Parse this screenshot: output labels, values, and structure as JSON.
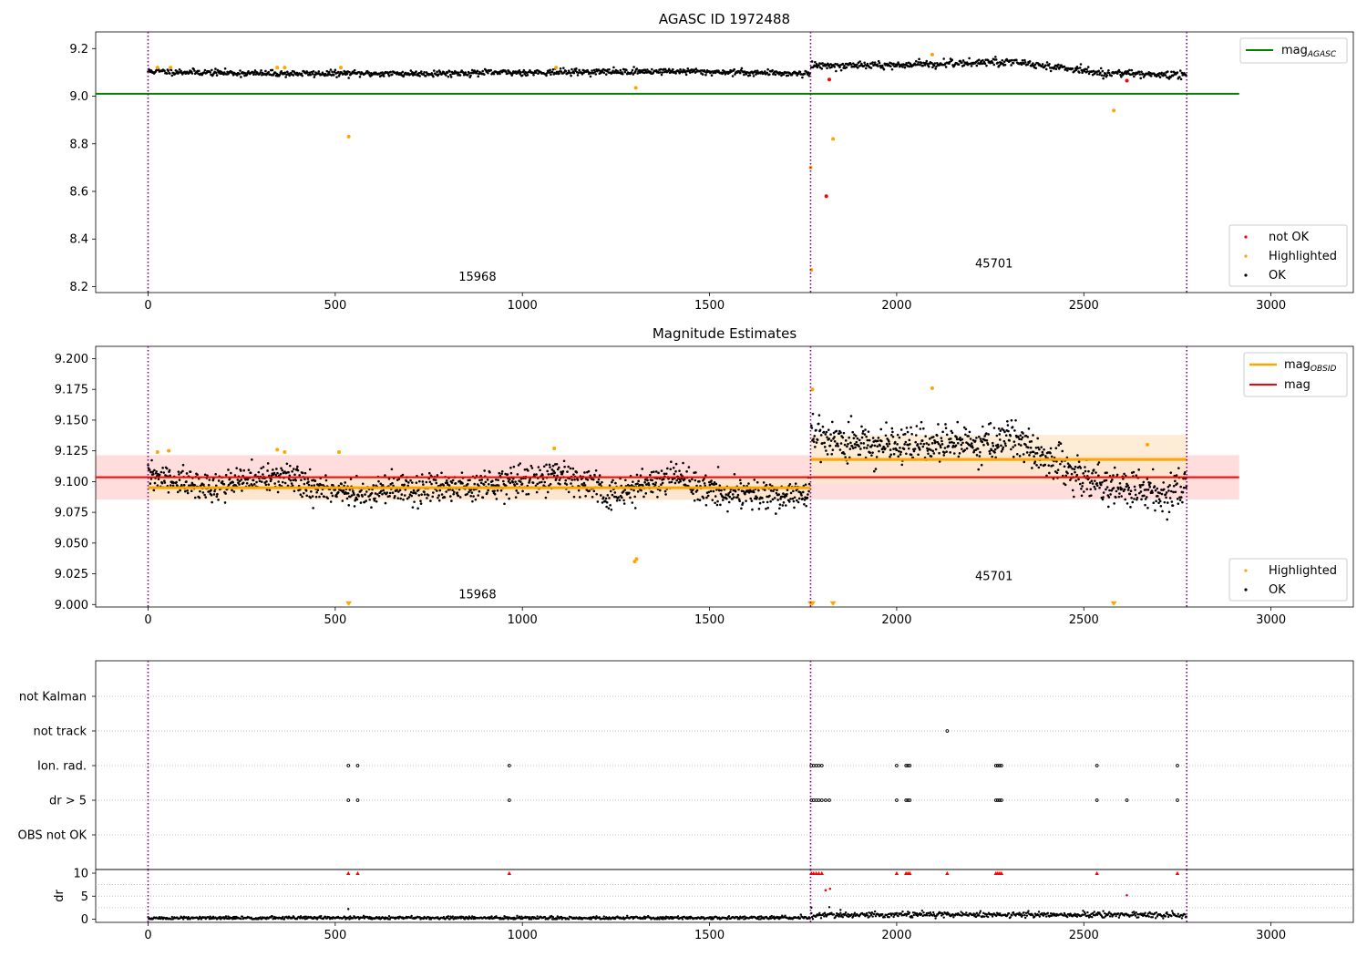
{
  "figure": {
    "colors": {
      "ok": "#000000",
      "highlighted": "#ffa500",
      "not_ok": "#ff0000",
      "agasc_line": "#008000",
      "mag_line": "#ff0000",
      "mag_obsid_line": "#ffa500",
      "obsid_boundary": "#800080",
      "mag_band": "#ffdddd",
      "mag_obsid_band": "#fde7cc",
      "flag_grid": "#b0b0b0"
    }
  },
  "chart_data": [
    {
      "type": "scatter",
      "title": "AGASC ID 1972488",
      "xlabel": "",
      "ylabel": "",
      "xlim": [
        -140,
        3220
      ],
      "ylim": [
        8.175,
        9.27
      ],
      "xticks": [
        0,
        500,
        1000,
        1500,
        2000,
        2500,
        3000
      ],
      "xtick_labels": [
        "0",
        "500",
        "1000",
        "1500",
        "2000",
        "2500",
        "3000"
      ],
      "yticks": [
        8.2,
        8.4,
        8.6,
        8.8,
        9.0,
        9.2
      ],
      "ytick_labels": [
        "8.2",
        "8.4",
        "8.6",
        "8.8",
        "9.0",
        "9.2"
      ],
      "obsid_boundaries": [
        0,
        1770,
        2775
      ],
      "obsid_labels": [
        {
          "text": "15968",
          "x": 880,
          "y": 8.225
        },
        {
          "text": "45701",
          "x": 2260,
          "y": 8.28
        }
      ],
      "reference_lines": [
        {
          "name": "mag",
          "sub": "AGASC",
          "y": 9.01,
          "x": [
            -140,
            2915
          ]
        }
      ],
      "legend_lines": [
        {
          "label": "mag",
          "sub": "AGASC",
          "color": "#008000"
        }
      ],
      "legend_markers": [
        {
          "label": "not OK",
          "color": "#ff0000"
        },
        {
          "label": "Highlighted",
          "color": "#ffa500"
        },
        {
          "label": "OK",
          "color": "#000000"
        }
      ],
      "series": [
        {
          "name": "OK",
          "style": "dense_band",
          "segments": [
            {
              "x_start": 0,
              "x_end": 1768,
              "center": [
                [
                  0,
                  9.105
                ],
                [
                  300,
                  9.095
                ],
                [
                  700,
                  9.095
                ],
                [
                  1000,
                  9.1
                ],
                [
                  1400,
                  9.105
                ],
                [
                  1768,
                  9.095
                ]
              ],
              "spread": 0.013
            },
            {
              "x_start": 1772,
              "x_end": 2775,
              "center": [
                [
                  1772,
                  9.13
                ],
                [
                  2000,
                  9.13
                ],
                [
                  2300,
                  9.145
                ],
                [
                  2450,
                  9.12
                ],
                [
                  2550,
                  9.095
                ],
                [
                  2775,
                  9.09
                ]
              ],
              "spread": 0.016
            }
          ]
        },
        {
          "name": "Highlighted",
          "points": [
            [
              25,
              9.12
            ],
            [
              60,
              9.12
            ],
            [
              345,
              9.12
            ],
            [
              365,
              9.12
            ],
            [
              515,
              9.12
            ],
            [
              536,
              8.83
            ],
            [
              1090,
              9.12
            ],
            [
              1303,
              9.035
            ],
            [
              1770,
              8.7
            ],
            [
              1772,
              8.27
            ],
            [
              1830,
              8.82
            ],
            [
              2095,
              9.175
            ],
            [
              2580,
              8.94
            ]
          ]
        },
        {
          "name": "not OK",
          "points": [
            [
              1812,
              8.58
            ],
            [
              1820,
              9.07
            ],
            [
              2615,
              9.065
            ]
          ]
        }
      ]
    },
    {
      "type": "scatter",
      "title": "Magnitude Estimates",
      "xlabel": "",
      "ylabel": "",
      "xlim": [
        -140,
        3220
      ],
      "ylim": [
        8.998,
        9.21
      ],
      "xticks": [
        0,
        500,
        1000,
        1500,
        2000,
        2500,
        3000
      ],
      "xtick_labels": [
        "0",
        "500",
        "1000",
        "1500",
        "2000",
        "2500",
        "3000"
      ],
      "yticks": [
        9.0,
        9.025,
        9.05,
        9.075,
        9.1,
        9.125,
        9.15,
        9.175,
        9.2
      ],
      "ytick_labels": [
        "9.000",
        "9.025",
        "9.050",
        "9.075",
        "9.100",
        "9.125",
        "9.150",
        "9.175",
        "9.200"
      ],
      "obsid_boundaries": [
        0,
        1770,
        2775
      ],
      "obsid_labels": [
        {
          "text": "15968",
          "x": 880,
          "y": 9.005
        },
        {
          "text": "45701",
          "x": 2260,
          "y": 9.02
        }
      ],
      "reference_lines": [
        {
          "name": "mag",
          "y": 9.1035,
          "x": [
            -140,
            2915
          ],
          "band": [
            9.0855,
            9.1215
          ]
        },
        {
          "name": "mag",
          "sub": "OBSID",
          "segments": [
            {
              "x": [
                0,
                1770
              ],
              "y": 9.095,
              "band": [
                9.085,
                9.105
              ]
            },
            {
              "x": [
                1770,
                2775
              ],
              "y": 9.118,
              "band": [
                9.098,
                9.138
              ]
            }
          ]
        }
      ],
      "legend_lines": [
        {
          "label": "mag",
          "sub": "OBSID",
          "color": "#ffa500"
        },
        {
          "label": "mag",
          "color": "#ff0000"
        }
      ],
      "legend_markers": [
        {
          "label": "Highlighted",
          "color": "#ffa500"
        },
        {
          "label": "OK",
          "color": "#000000"
        }
      ],
      "series": [
        {
          "name": "OK",
          "style": "scatter_band",
          "segments": [
            {
              "x_start": 0,
              "x_end": 1768,
              "center": [
                [
                  0,
                  9.105
                ],
                [
                  150,
                  9.095
                ],
                [
                  350,
                  9.105
                ],
                [
                  500,
                  9.09
                ],
                [
                  800,
                  9.095
                ],
                [
                  1100,
                  9.105
                ],
                [
                  1250,
                  9.09
                ],
                [
                  1400,
                  9.105
                ],
                [
                  1550,
                  9.09
                ],
                [
                  1768,
                  9.09
                ]
              ],
              "spread": 0.012
            },
            {
              "x_start": 1772,
              "x_end": 2775,
              "center": [
                [
                  1772,
                  9.14
                ],
                [
                  1900,
                  9.13
                ],
                [
                  2100,
                  9.128
                ],
                [
                  2300,
                  9.135
                ],
                [
                  2420,
                  9.115
                ],
                [
                  2550,
                  9.095
                ],
                [
                  2700,
                  9.09
                ],
                [
                  2775,
                  9.095
                ]
              ],
              "spread": 0.016
            }
          ]
        },
        {
          "name": "Highlighted",
          "points": [
            [
              25,
              9.124
            ],
            [
              55,
              9.125
            ],
            [
              345,
              9.126
            ],
            [
              365,
              9.124
            ],
            [
              510,
              9.124
            ],
            [
              1085,
              9.127
            ],
            [
              1300,
              9.035
            ],
            [
              1305,
              9.037
            ],
            [
              1775,
              9.175
            ],
            [
              2095,
              9.176
            ],
            [
              2670,
              9.13
            ]
          ]
        },
        {
          "name": "Highlighted (below range)",
          "points": [
            [
              536,
              9.0
            ],
            [
              1770,
              9.0
            ],
            [
              1775,
              9.0
            ],
            [
              1830,
              9.0
            ],
            [
              2580,
              9.0
            ]
          ]
        }
      ]
    },
    {
      "type": "scatter",
      "title": "",
      "xlabel": "",
      "ylabel": "",
      "xlim": [
        -140,
        3220
      ],
      "categories": [
        "not Kalman",
        "not track",
        "Ion. rad.",
        "dr > 5",
        "OBS not OK"
      ],
      "obsid_boundaries": [
        0,
        1770,
        2775
      ],
      "series": [
        {
          "name": "not track",
          "points": [
            2135
          ]
        },
        {
          "name": "Ion. rad.",
          "points": [
            535,
            560,
            965,
            1772,
            1778,
            1785,
            1792,
            1800,
            2000,
            2025,
            2030,
            2035,
            2265,
            2270,
            2275,
            2280,
            2535,
            2750
          ]
        },
        {
          "name": "dr > 5",
          "points": [
            535,
            560,
            965,
            1772,
            1778,
            1785,
            1792,
            1800,
            1810,
            1820,
            2000,
            2025,
            2030,
            2035,
            2265,
            2270,
            2275,
            2280,
            2535,
            2615,
            2750
          ]
        }
      ]
    },
    {
      "type": "scatter",
      "title": "",
      "xlabel": "",
      "ylabel": "dr",
      "xlim": [
        -140,
        3220
      ],
      "ylim": [
        -0.7,
        10.8
      ],
      "xticks": [
        0,
        500,
        1000,
        1500,
        2000,
        2500,
        3000
      ],
      "xtick_labels": [
        "0",
        "500",
        "1000",
        "1500",
        "2000",
        "2500",
        "3000"
      ],
      "yticks": [
        0,
        5,
        10
      ],
      "ytick_labels": [
        "0",
        "5",
        "10"
      ],
      "obsid_boundaries": [
        0,
        1770,
        2775
      ],
      "series": [
        {
          "name": "dr",
          "style": "dense_band",
          "segments": [
            {
              "x_start": 0,
              "x_end": 1768,
              "center": [
                [
                  0,
                  0.2
                ],
                [
                  500,
                  0.3
                ],
                [
                  1000,
                  0.25
                ],
                [
                  1768,
                  0.3
                ]
              ],
              "spread": 0.35
            },
            {
              "x_start": 1772,
              "x_end": 2775,
              "center": [
                [
                  1772,
                  0.8
                ],
                [
                  2000,
                  1.0
                ],
                [
                  2500,
                  1.0
                ],
                [
                  2775,
                  0.8
                ]
              ],
              "spread": 0.6
            }
          ]
        },
        {
          "name": "dr scattered",
          "points": [
            [
              535,
              2.2
            ],
            [
              1772,
              2.5
            ],
            [
              1850,
              2.0
            ],
            [
              1820,
              2.6
            ]
          ]
        },
        {
          "name": "dr > 10 (clipped)",
          "points": [
            535,
            560,
            965,
            1772,
            1778,
            1785,
            1792,
            1800,
            2000,
            2025,
            2030,
            2035,
            2135,
            2265,
            2270,
            2275,
            2280,
            2535,
            2750
          ]
        },
        {
          "name": "dr 5-10",
          "points": [
            [
              1810,
              6.3
            ],
            [
              1822,
              6.6
            ],
            [
              2615,
              5.2
            ]
          ]
        }
      ]
    }
  ]
}
